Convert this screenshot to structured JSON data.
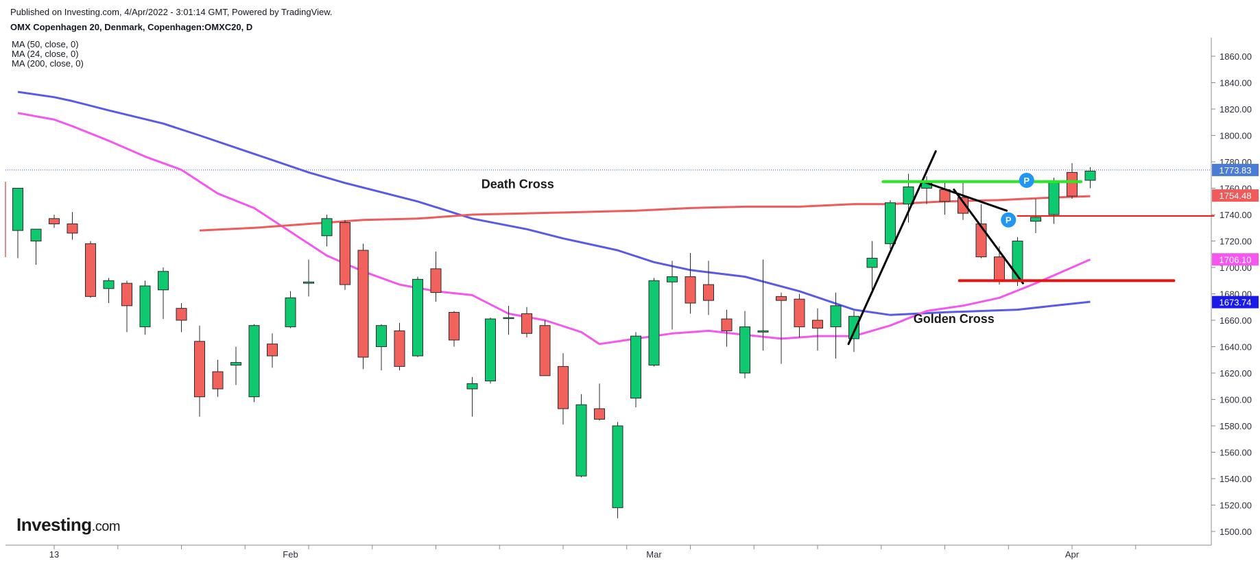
{
  "header": {
    "published": "Published on Investing.com, 4/Apr/2022 - 3:01:14 GMT, Powered by TradingView.",
    "symbol": "OMX Copenhagen 20, Denmark, Copenhagen:OMXC20, D"
  },
  "indicators": [
    "MA (50, close, 0)",
    "MA (24, close, 0)",
    "MA (200, close, 0)"
  ],
  "logo": {
    "text": "Investing",
    "domain": ".com"
  },
  "colors": {
    "up": "#0ec96f",
    "down": "#f0625b",
    "ma50": "#5a5ae8",
    "ma24": "#f656f0",
    "ma200": "#f05a5a",
    "pivot": "#2196f3",
    "green_line": "#22ee22",
    "red_line": "#ee1111",
    "last_price": "#4a7bd6"
  },
  "chart_data": {
    "type": "candlestick",
    "y_axis": {
      "min": 1490,
      "max": 1870,
      "ticks": [
        "1500.00",
        "1520.00",
        "1540.00",
        "1560.00",
        "1580.00",
        "1600.00",
        "1620.00",
        "1640.00",
        "1660.00",
        "1680.00",
        "1700.00",
        "1720.00",
        "1740.00",
        "1760.00",
        "1780.00",
        "1800.00",
        "1820.00",
        "1840.00",
        "1860.00"
      ],
      "position": "right"
    },
    "x_axis": {
      "labels": [
        {
          "text": "13",
          "bar": 2
        },
        {
          "text": "Feb",
          "bar": 15
        },
        {
          "text": "Mar",
          "bar": 35
        },
        {
          "text": "Apr",
          "bar": 58
        }
      ]
    },
    "candles": [
      [
        1728,
        1760,
        1707,
        1760
      ],
      [
        1720,
        1728,
        1702,
        1729
      ],
      [
        1737,
        1740,
        1730,
        1733
      ],
      [
        1733,
        1742,
        1721,
        1726
      ],
      [
        1718,
        1720,
        1677,
        1678
      ],
      [
        1684,
        1692,
        1673,
        1690
      ],
      [
        1688,
        1690,
        1651,
        1671
      ],
      [
        1655,
        1690,
        1649,
        1686
      ],
      [
        1683,
        1700,
        1661,
        1697
      ],
      [
        1669,
        1673,
        1651,
        1660
      ],
      [
        1644,
        1656,
        1587,
        1602
      ],
      [
        1621,
        1630,
        1602,
        1608
      ],
      [
        1626,
        1640,
        1611,
        1628
      ],
      [
        1602,
        1657,
        1598,
        1656
      ],
      [
        1642,
        1650,
        1624,
        1633
      ],
      [
        1655,
        1682,
        1654,
        1677
      ],
      [
        1688,
        1706,
        1678,
        1689
      ],
      [
        1724,
        1740,
        1716,
        1737
      ],
      [
        1734,
        1736,
        1683,
        1687
      ],
      [
        1713,
        1718,
        1623,
        1632
      ],
      [
        1640,
        1657,
        1622,
        1656
      ],
      [
        1652,
        1658,
        1622,
        1625
      ],
      [
        1633,
        1693,
        1632,
        1691
      ],
      [
        1699,
        1712,
        1674,
        1681
      ],
      [
        1666,
        1667,
        1640,
        1645
      ],
      [
        1608,
        1617,
        1587,
        1612
      ],
      [
        1614,
        1662,
        1612,
        1661
      ],
      [
        1662,
        1671,
        1649,
        1662
      ],
      [
        1665,
        1670,
        1647,
        1650
      ],
      [
        1656,
        1660,
        1618,
        1618
      ],
      [
        1625,
        1635,
        1581,
        1593
      ],
      [
        1542,
        1604,
        1541,
        1596
      ],
      [
        1593,
        1612,
        1584,
        1585
      ],
      [
        1518,
        1583,
        1510,
        1580
      ],
      [
        1601,
        1651,
        1594,
        1648
      ],
      [
        1626,
        1692,
        1625,
        1690
      ],
      [
        1689,
        1705,
        1653,
        1693
      ],
      [
        1693,
        1711,
        1665,
        1673
      ],
      [
        1687,
        1705,
        1664,
        1675
      ],
      [
        1661,
        1668,
        1640,
        1652
      ],
      [
        1620,
        1667,
        1616,
        1655
      ],
      [
        1651,
        1706,
        1637,
        1652
      ],
      [
        1678,
        1681,
        1627,
        1675
      ],
      [
        1676,
        1680,
        1647,
        1655
      ],
      [
        1660,
        1669,
        1637,
        1654
      ],
      [
        1655,
        1681,
        1631,
        1671
      ],
      [
        1646,
        1667,
        1636,
        1663
      ],
      [
        1700,
        1720,
        1680,
        1707
      ],
      [
        1718,
        1751,
        1714,
        1749
      ],
      [
        1748,
        1771,
        1734,
        1761
      ],
      [
        1760,
        1769,
        1748,
        1765
      ],
      [
        1759,
        1766,
        1740,
        1750
      ],
      [
        1753,
        1764,
        1736,
        1741
      ],
      [
        1733,
        1748,
        1707,
        1708
      ],
      [
        1708,
        1716,
        1687,
        1690
      ],
      [
        1690,
        1723,
        1686,
        1720
      ],
      [
        1735,
        1752,
        1726,
        1738
      ],
      [
        1740,
        1768,
        1733,
        1765
      ],
      [
        1772,
        1779,
        1752,
        1754
      ],
      [
        1766,
        1776,
        1760,
        1773
      ]
    ],
    "moving_averages": [
      {
        "name": "MA (50, close, 0)",
        "color": "#5a5ae8",
        "values": [
          [
            0,
            1833
          ],
          [
            2,
            1829
          ],
          [
            3,
            1826
          ],
          [
            5,
            1819
          ],
          [
            8,
            1809
          ],
          [
            10,
            1800
          ],
          [
            13,
            1786
          ],
          [
            16,
            1772
          ],
          [
            18,
            1764
          ],
          [
            22,
            1750
          ],
          [
            25,
            1737
          ],
          [
            28,
            1729
          ],
          [
            30,
            1722
          ],
          [
            33,
            1713
          ],
          [
            35,
            1704
          ],
          [
            37,
            1698
          ],
          [
            40,
            1693
          ],
          [
            43,
            1682
          ],
          [
            46,
            1668
          ],
          [
            48,
            1664
          ],
          [
            51,
            1666
          ],
          [
            53,
            1667
          ],
          [
            55,
            1668
          ],
          [
            57,
            1671
          ],
          [
            59,
            1674
          ]
        ]
      },
      {
        "name": "MA (24, close, 0)",
        "color": "#f656f0",
        "values": [
          [
            0,
            1817
          ],
          [
            2,
            1812
          ],
          [
            3,
            1807
          ],
          [
            5,
            1796
          ],
          [
            7,
            1784
          ],
          [
            9,
            1774
          ],
          [
            11,
            1756
          ],
          [
            13,
            1745
          ],
          [
            15,
            1727
          ],
          [
            17,
            1709
          ],
          [
            19,
            1697
          ],
          [
            21,
            1687
          ],
          [
            23,
            1682
          ],
          [
            25,
            1679
          ],
          [
            27,
            1665
          ],
          [
            29,
            1660
          ],
          [
            31,
            1651
          ],
          [
            32,
            1642
          ],
          [
            34,
            1646
          ],
          [
            36,
            1650
          ],
          [
            38,
            1652
          ],
          [
            40,
            1649
          ],
          [
            42,
            1646
          ],
          [
            44,
            1648
          ],
          [
            46,
            1648
          ],
          [
            48,
            1656
          ],
          [
            50,
            1667
          ],
          [
            52,
            1671
          ],
          [
            54,
            1677
          ],
          [
            56,
            1688
          ],
          [
            58,
            1700
          ],
          [
            59,
            1706
          ]
        ]
      },
      {
        "name": "MA (200, close, 0)",
        "color": "#f05a5a",
        "values": [
          [
            10,
            1728
          ],
          [
            13,
            1730
          ],
          [
            16,
            1733
          ],
          [
            19,
            1736
          ],
          [
            22,
            1737
          ],
          [
            25,
            1740
          ],
          [
            28,
            1741
          ],
          [
            31,
            1742
          ],
          [
            34,
            1743
          ],
          [
            37,
            1745
          ],
          [
            40,
            1746
          ],
          [
            43,
            1746
          ],
          [
            46,
            1748
          ],
          [
            48,
            1748
          ],
          [
            51,
            1750
          ],
          [
            54,
            1751
          ],
          [
            57,
            1753
          ],
          [
            59,
            1754
          ]
        ]
      }
    ],
    "last_prices": [
      {
        "value": 1773.83,
        "label": "1773.83",
        "color": "#4a7bd6"
      },
      {
        "value": 1754.48,
        "label": "1754.48",
        "color": "#f05a5a"
      },
      {
        "value": 1706.1,
        "label": "1706.10",
        "color": "#f656f0"
      },
      {
        "value": 1673.74,
        "label": "1673.74",
        "color": "#1a1ae8"
      }
    ],
    "annotations": [
      {
        "text": "Death Cross",
        "bar": 27.5,
        "value": 1760
      },
      {
        "text": "Golden Cross",
        "bar": 51.5,
        "value": 1658
      }
    ],
    "drawings": [
      {
        "type": "line",
        "color": "#000000",
        "from": [
          45.7,
          1642
        ],
        "to": [
          50.5,
          1788
        ]
      },
      {
        "type": "line",
        "color": "#000000",
        "from": [
          49.8,
          1765
        ],
        "to": [
          54.4,
          1743
        ]
      },
      {
        "type": "line",
        "color": "#000000",
        "from": [
          51.5,
          1759
        ],
        "to": [
          55.3,
          1688
        ]
      },
      {
        "type": "line",
        "color": "#22ee22",
        "from": [
          47.6,
          1765
        ],
        "to": [
          58.5,
          1765
        ]
      },
      {
        "type": "line",
        "color": "#ee1111",
        "from": [
          51.8,
          1690
        ],
        "to": [
          63.6,
          1690
        ]
      },
      {
        "type": "line",
        "color": "#ee1111",
        "from": [
          55.0,
          1739
        ],
        "to": [
          65.8,
          1739
        ]
      }
    ],
    "pivots": [
      {
        "label": "P",
        "bar": 55.5,
        "value": 1766
      },
      {
        "label": "P",
        "bar": 54.5,
        "value": 1736
      }
    ]
  }
}
